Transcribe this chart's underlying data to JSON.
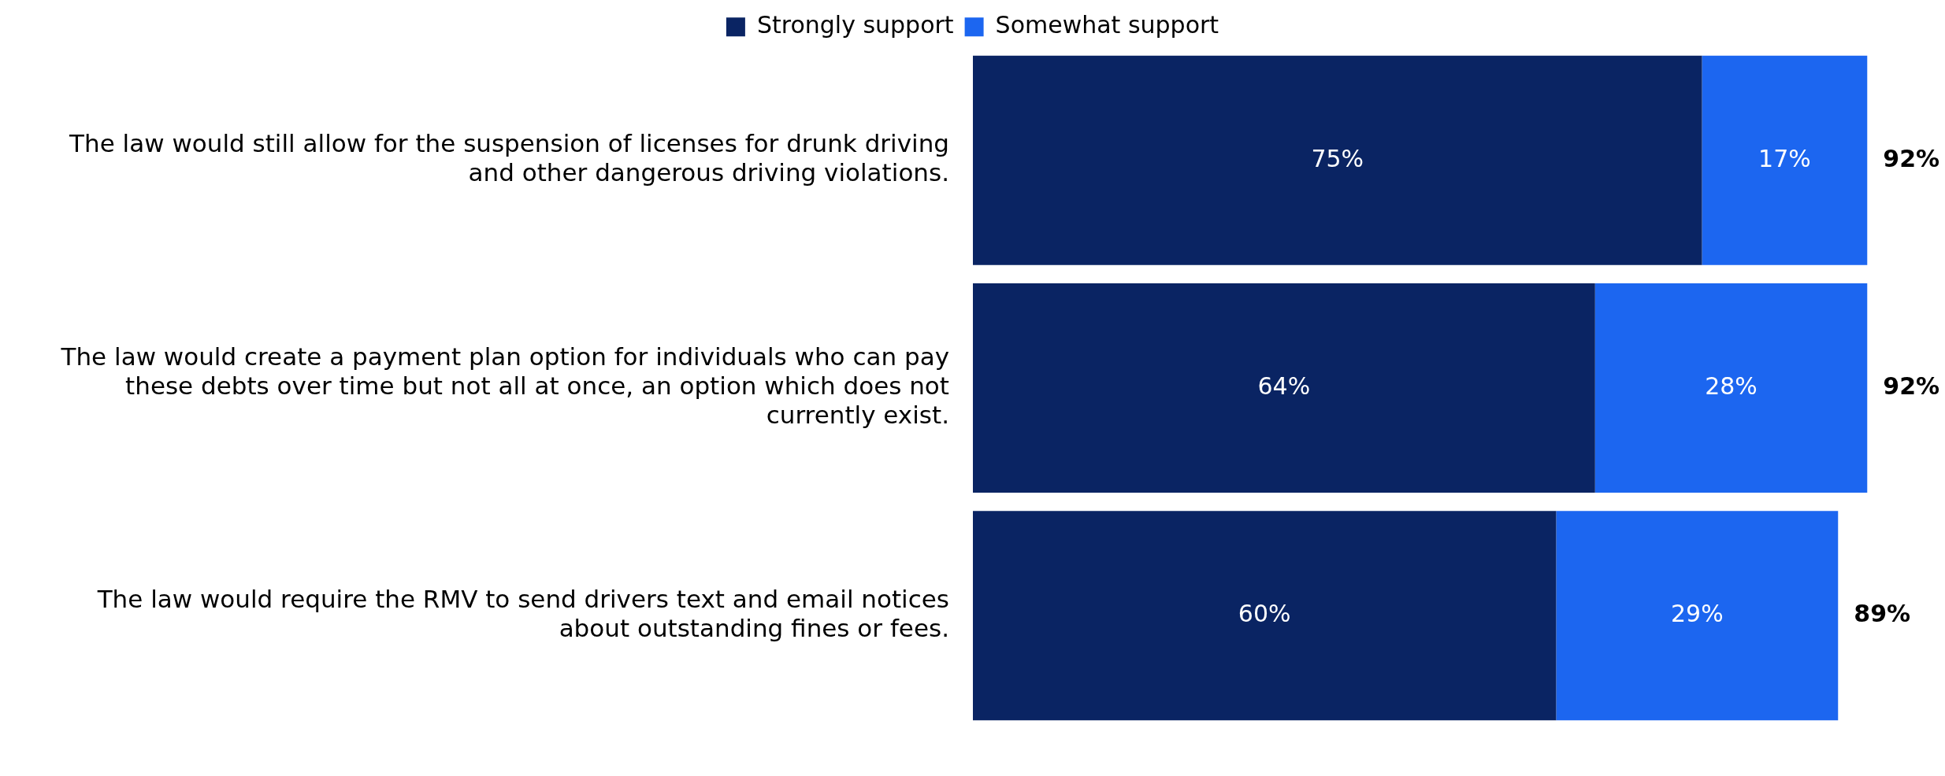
{
  "chart_data": {
    "type": "bar",
    "orientation": "horizontal",
    "stacked": true,
    "legend": "top",
    "categories": [
      "The law would still allow for the suspension of licenses for drunk driving and other dangerous driving violations.",
      "The law would create a payment plan option for individuals who can pay these debts over time but not all at once, an option which does not currently exist.",
      "The law would require the RMV to send drivers text and email notices about outstanding fines or fees."
    ],
    "series": [
      {
        "name": "Strongly support",
        "color": "#0a2463",
        "values": [
          75,
          64,
          60
        ],
        "value_labels": [
          "75%",
          "64%",
          "60%"
        ]
      },
      {
        "name": "Somewhat support",
        "color": "#1c66f0",
        "values": [
          17,
          28,
          29
        ],
        "value_labels": [
          "17%",
          "28%",
          "29%"
        ]
      }
    ],
    "totals": [
      "92%",
      "92%",
      "89%"
    ]
  }
}
